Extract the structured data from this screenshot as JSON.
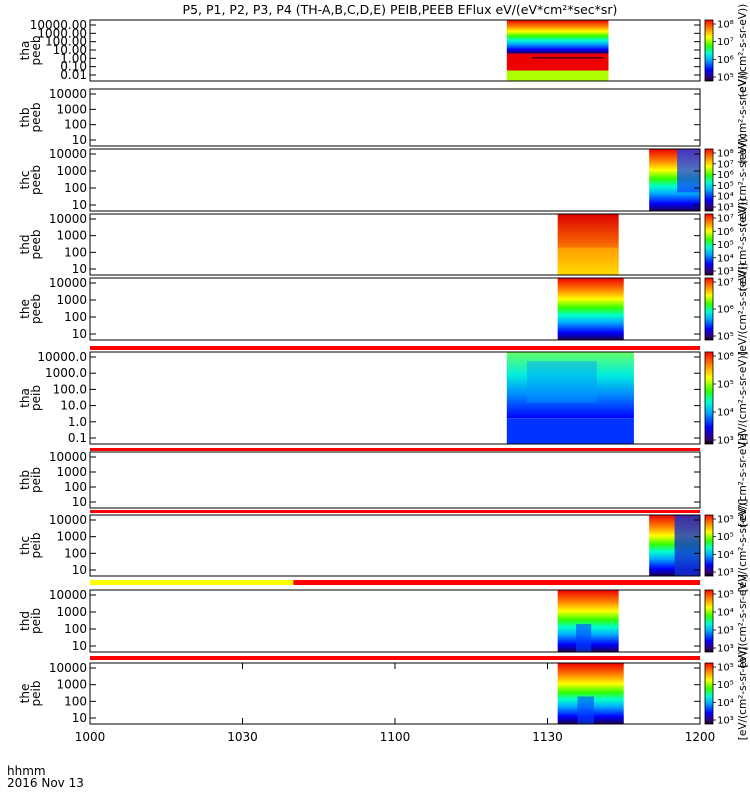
{
  "chart_data": {
    "type": "heatmap",
    "title": "P5, P1, P2, P3, P4 (TH-A,B,C,D,E) PEIB,PEEB EFlux eV/(eV*cm²*sec*sr)",
    "x_axis": {
      "labels": [
        "1000",
        "1030",
        "1100",
        "1130",
        "1200"
      ],
      "range_minutes": [
        0,
        120
      ],
      "corner_label": "hhmm",
      "date_label": "2016 Nov 13"
    },
    "panels": [
      {
        "id": "tha-peeb",
        "label": "tha peeb",
        "log": true,
        "y_ticks": [
          "10000.00",
          "1000.00",
          "100.00",
          "10.00",
          "1.00",
          "0.10",
          "0.01"
        ],
        "data_start_min": 82,
        "data_end_min": 102,
        "cb_ticks": [
          "10⁸",
          "10⁷",
          "10⁶",
          "10⁵"
        ],
        "cb_label": "(eV/(cm²-s-sr-eV))"
      },
      {
        "id": "thb-peeb",
        "label": "thb peeb",
        "log": true,
        "y_ticks": [
          "10000",
          "1000",
          "100",
          "10"
        ],
        "data_start_min": null,
        "data_end_min": null,
        "cb_ticks": [],
        "cb_label": "(eV/(cm²-s-sr-eV))"
      },
      {
        "id": "thc-peeb",
        "label": "thc peeb",
        "log": true,
        "y_ticks": [
          "10000",
          "1000",
          "100",
          "10"
        ],
        "data_start_min": 110,
        "data_end_min": 120,
        "cb_ticks": [
          "10⁸",
          "10⁷",
          "10⁶",
          "10⁵",
          "10⁴",
          "10³"
        ],
        "cb_label": "(eV/(cm²-s-sr-eV))"
      },
      {
        "id": "thd-peeb",
        "label": "thd peeb",
        "log": true,
        "y_ticks": [
          "10000",
          "1000",
          "100",
          "10"
        ],
        "data_start_min": 92,
        "data_end_min": 104,
        "cb_ticks": [
          "10⁷",
          "10⁶",
          "10⁵",
          "10⁴",
          "10³"
        ],
        "cb_label": "(eV/(cm²-s-sr-eV))"
      },
      {
        "id": "the-peeb",
        "label": "the peeb",
        "log": true,
        "y_ticks": [
          "10000",
          "1000",
          "100",
          "10"
        ],
        "data_start_min": 92,
        "data_end_min": 105,
        "cb_ticks": [
          "10⁷",
          "10⁶",
          "10⁵"
        ],
        "cb_label": "(eV/(cm²-s-sr-eV))"
      },
      {
        "id": "tha-peib",
        "label": "tha peib",
        "log": true,
        "y_ticks": [
          "10000.0",
          "1000.0",
          "100.0",
          "10.0",
          "1.0",
          "0.1"
        ],
        "data_start_min": 82,
        "data_end_min": 107,
        "cb_ticks": [
          "10⁶",
          "10⁵",
          "10⁴",
          "10³"
        ],
        "cb_label": "[eV/(cm²-s-sr-eV)]"
      },
      {
        "id": "thb-peib",
        "label": "thb peib",
        "log": true,
        "y_ticks": [
          "10000",
          "1000",
          "100",
          "10"
        ],
        "data_start_min": null,
        "data_end_min": null,
        "cb_ticks": [],
        "cb_label": "[eV/(cm²-s-sr-eV)]"
      },
      {
        "id": "thc-peib",
        "label": "thc peib",
        "log": true,
        "y_ticks": [
          "10000",
          "1000",
          "100",
          "10"
        ],
        "data_start_min": 110,
        "data_end_min": 120,
        "cb_ticks": [
          "10⁵",
          "10⁵",
          "10⁴",
          "10³"
        ],
        "cb_label": "[eV/(cm²-s-sr-eV)]"
      },
      {
        "id": "thd-peib",
        "label": "thd peib",
        "log": true,
        "y_ticks": [
          "10000",
          "1000",
          "100",
          "10"
        ],
        "data_start_min": 92,
        "data_end_min": 104,
        "cb_ticks": [
          "10⁵",
          "10⁴",
          "10³",
          "10³"
        ],
        "cb_label": "[eV/(cm²-s-sr-eV)]"
      },
      {
        "id": "the-peib",
        "label": "the peib",
        "log": true,
        "y_ticks": [
          "10000",
          "1000",
          "100",
          "10"
        ],
        "data_start_min": 92,
        "data_end_min": 105,
        "cb_ticks": [
          "10⁵",
          "10⁵",
          "10⁴",
          "10³"
        ],
        "cb_label": "[eV/(cm²-s-sr-eV)]"
      }
    ],
    "mode_bars": [
      {
        "after_panel": 4,
        "segments": [
          {
            "from_min": 0,
            "to_min": 120,
            "color": "#ff0000"
          }
        ]
      },
      {
        "after_panel": 5,
        "segments": [
          {
            "from_min": 0,
            "to_min": 120,
            "color": "#ff0000"
          }
        ]
      },
      {
        "after_panel": 6,
        "segments": [
          {
            "from_min": 0,
            "to_min": 120,
            "color": "#ff0000"
          }
        ]
      },
      {
        "after_panel": 7,
        "segments": [
          {
            "from_min": 0,
            "to_min": 40,
            "color": "#ffff00"
          },
          {
            "from_min": 40,
            "to_min": 120,
            "color": "#ff0000"
          }
        ]
      },
      {
        "after_panel": 8,
        "segments": [
          {
            "from_min": 0,
            "to_min": 120,
            "color": "#ff0000"
          }
        ]
      }
    ]
  }
}
